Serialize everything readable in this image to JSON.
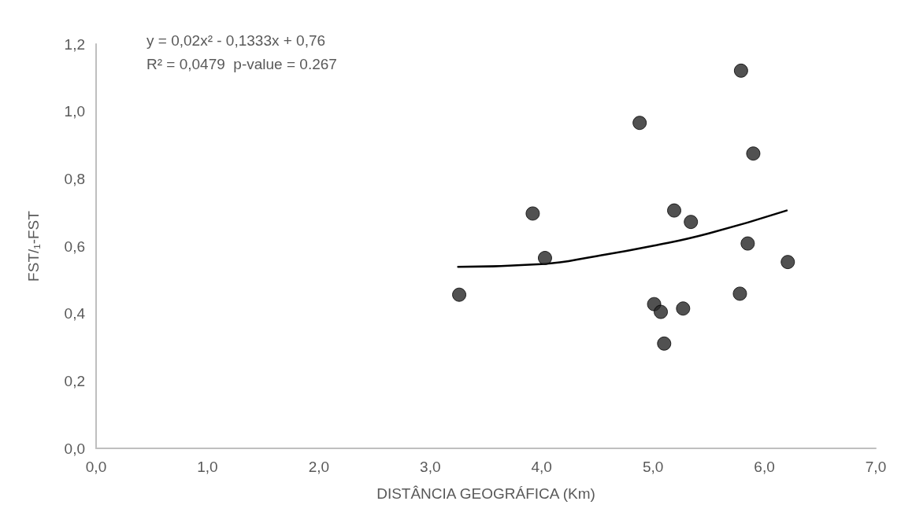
{
  "chart_data": {
    "type": "scatter",
    "xlabel": "DISTÂNCIA GEOGRÁFICA (Km)",
    "ylabel": "FST/₁-FST",
    "annotations": [
      "y = 0,02x² - 0,1333x + 0,76",
      "R² = 0,0479  p-value = 0.267"
    ],
    "marker": "circle",
    "series": [
      {
        "type": "scatter",
        "color": "#262626",
        "x": [
          3.26,
          3.92,
          4.03,
          4.88,
          5.01,
          5.07,
          5.1,
          5.19,
          5.27,
          5.34,
          5.78,
          5.79,
          5.85,
          5.9,
          6.21
        ],
        "values": [
          0.456,
          0.697,
          0.565,
          0.966,
          0.428,
          0.405,
          0.311,
          0.706,
          0.415,
          0.672,
          0.459,
          1.121,
          0.608,
          0.875,
          0.553
        ]
      },
      {
        "type": "line",
        "color": "#000000",
        "marker": "none",
        "x": [
          3.25,
          4.0,
          4.5,
          5.0,
          5.5,
          6.2
        ],
        "values": [
          0.539,
          0.547,
          0.571,
          0.601,
          0.638,
          0.706
        ]
      }
    ],
    "xlim": [
      0,
      7
    ],
    "ylim": [
      0,
      1.2
    ],
    "xticks": [
      {
        "value": 0,
        "label": "0,0"
      },
      {
        "value": 1,
        "label": "1,0"
      },
      {
        "value": 2,
        "label": "2,0"
      },
      {
        "value": 3,
        "label": "3,0"
      },
      {
        "value": 4,
        "label": "4,0"
      },
      {
        "value": 5,
        "label": "5,0"
      },
      {
        "value": 6,
        "label": "6,0"
      },
      {
        "value": 7,
        "label": "7,0"
      }
    ],
    "yticks": [
      {
        "value": 0,
        "label": "0,0"
      },
      {
        "value": 0.2,
        "label": "0,2"
      },
      {
        "value": 0.4,
        "label": "0,4"
      },
      {
        "value": 0.6,
        "label": "0,6"
      },
      {
        "value": 0.8,
        "label": "0,8"
      },
      {
        "value": 1.0,
        "label": "1,0"
      },
      {
        "value": 1.2,
        "label": "1,2"
      }
    ]
  }
}
